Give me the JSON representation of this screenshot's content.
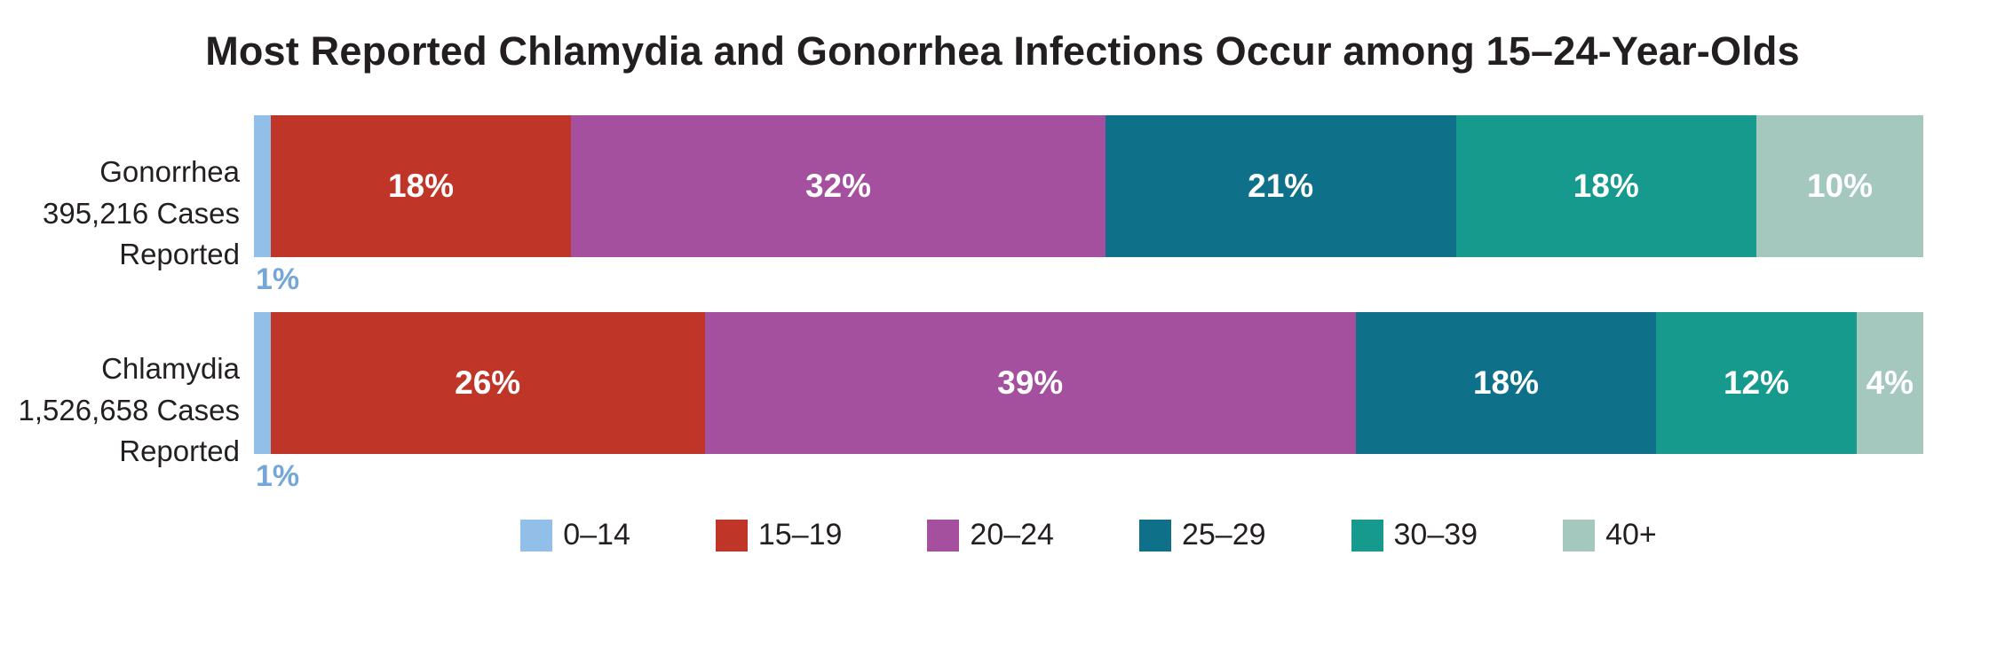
{
  "chart_data": {
    "type": "bar",
    "variant": "horizontal-stacked",
    "title": "Most Reported Chlamydia and Gonorrhea Infections Occur among 15–24-Year-Olds",
    "categories": [
      "0–14",
      "15–19",
      "20–24",
      "25–29",
      "30–39",
      "40+"
    ],
    "colors": [
      "#92bfe7",
      "#bf3527",
      "#a4509e",
      "#0e7189",
      "#169a8d",
      "#a5c8be"
    ],
    "value_unit": "percent",
    "xlim": [
      0,
      100
    ],
    "series": [
      {
        "name": "Gonorrhea",
        "label_lines": [
          "Gonorrhea",
          "395,216 Cases",
          "Reported"
        ],
        "values": [
          1,
          18,
          32,
          21,
          18,
          10
        ],
        "segment_labels": [
          "",
          "18%",
          "32%",
          "21%",
          "18%",
          "10%"
        ],
        "below_label": "1%"
      },
      {
        "name": "Chlamydia",
        "label_lines": [
          "Chlamydia",
          "1,526,658 Cases",
          "Reported"
        ],
        "values": [
          1,
          26,
          39,
          18,
          12,
          4
        ],
        "segment_labels": [
          "",
          "26%",
          "39%",
          "18%",
          "12%",
          "4%"
        ],
        "below_label": "1%"
      }
    ],
    "legend": {
      "position": "bottom-center",
      "items": [
        "0–14",
        "15–19",
        "20–24",
        "25–29",
        "30–39",
        "40+"
      ]
    },
    "text_color": "#231f20",
    "below_label_color": "#74a7d8"
  }
}
